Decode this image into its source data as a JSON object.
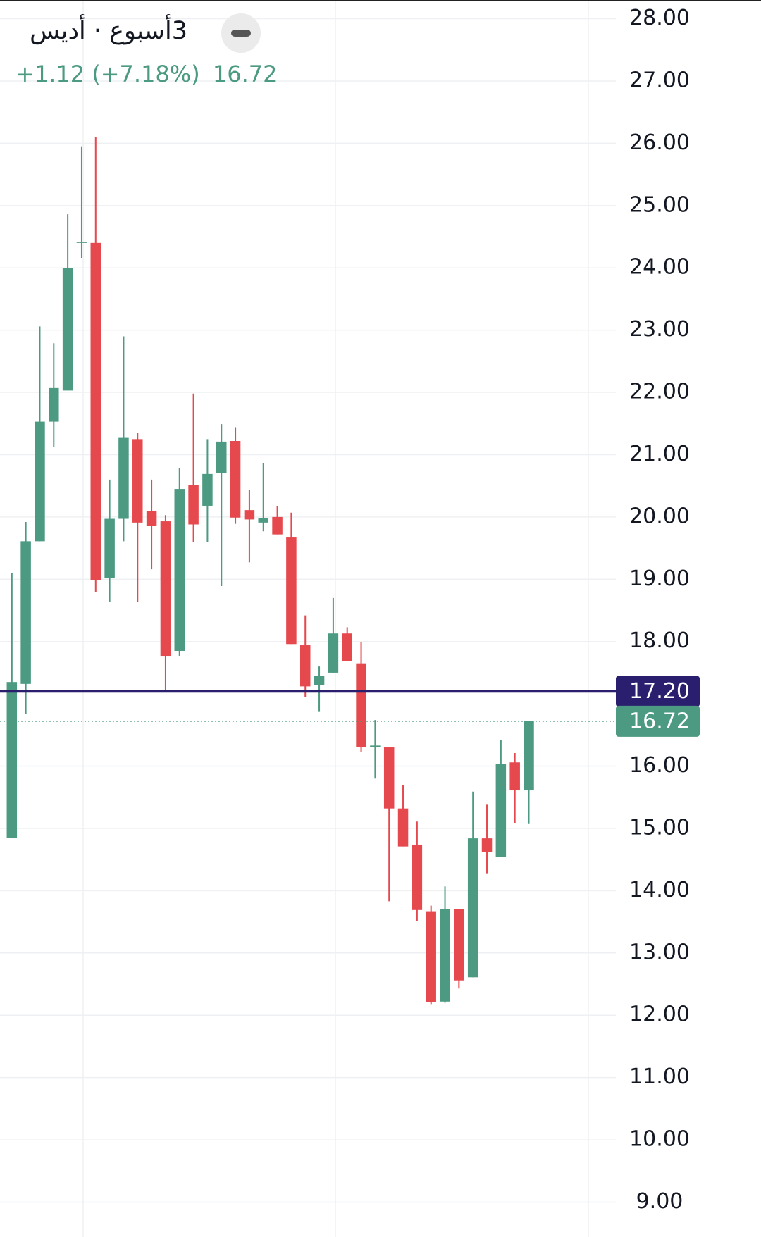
{
  "header": {
    "title": "3أسبوع · أديس",
    "change": "+1.12",
    "change_pct": "(+7.18%)",
    "last": "16.72"
  },
  "chart_data": {
    "type": "candlestick",
    "open": [
      14.85,
      17.32,
      19.61,
      21.53,
      22.03,
      24.4,
      24.4,
      19.02,
      19.97,
      21.25,
      20.1,
      19.93,
      17.85,
      20.51,
      20.18,
      20.7,
      21.22,
      20.11,
      19.91,
      20.0,
      19.67,
      17.94,
      17.3,
      17.5,
      18.13,
      17.65,
      16.31,
      16.3,
      15.32,
      14.74,
      13.67,
      12.22,
      13.71,
      12.61,
      14.84,
      14.54,
      16.06,
      15.61
    ],
    "high": [
      19.1,
      19.92,
      23.06,
      22.79,
      24.86,
      25.95,
      26.1,
      20.6,
      22.9,
      21.35,
      20.6,
      20.03,
      20.78,
      21.98,
      21.25,
      21.49,
      21.44,
      20.43,
      20.87,
      20.17,
      20.07,
      18.42,
      17.6,
      18.7,
      18.23,
      17.99,
      16.74,
      16.3,
      15.69,
      15.11,
      13.76,
      14.07,
      13.71,
      15.59,
      15.38,
      16.42,
      16.21,
      16.72
    ],
    "low": [
      14.85,
      16.84,
      19.61,
      21.13,
      22.03,
      24.16,
      18.8,
      18.63,
      19.61,
      18.64,
      19.16,
      17.21,
      17.77,
      19.6,
      19.6,
      18.89,
      19.89,
      19.27,
      19.77,
      19.72,
      17.96,
      17.11,
      16.87,
      17.5,
      17.69,
      16.23,
      15.8,
      13.83,
      14.71,
      13.51,
      12.18,
      12.2,
      12.43,
      12.61,
      14.28,
      14.54,
      15.09,
      15.07
    ],
    "close": [
      17.35,
      19.61,
      21.53,
      22.07,
      24.0,
      24.42,
      18.99,
      19.97,
      21.27,
      19.91,
      19.86,
      17.77,
      20.45,
      19.88,
      20.69,
      21.21,
      19.99,
      19.96,
      19.98,
      19.72,
      17.96,
      17.28,
      17.45,
      18.13,
      17.69,
      16.31,
      16.33,
      15.32,
      14.71,
      13.69,
      12.21,
      13.71,
      12.56,
      14.84,
      14.62,
      16.04,
      15.61,
      16.72
    ],
    "up_color": "#4c9a82",
    "down_color": "#e5484d",
    "ylim": [
      8.44,
      28.3
    ],
    "yticks": [
      {
        "value": 28,
        "label": "28.00"
      },
      {
        "value": 27,
        "label": "27.00"
      },
      {
        "value": 26,
        "label": "26.00"
      },
      {
        "value": 25,
        "label": "25.00"
      },
      {
        "value": 24,
        "label": "24.00"
      },
      {
        "value": 23,
        "label": "23.00"
      },
      {
        "value": 22,
        "label": "22.00"
      },
      {
        "value": 21,
        "label": "21.00"
      },
      {
        "value": 20,
        "label": "20.00"
      },
      {
        "value": 19,
        "label": "19.00"
      },
      {
        "value": 18,
        "label": "18.00"
      },
      {
        "value": 16,
        "label": "16.00"
      },
      {
        "value": 15,
        "label": "15.00"
      },
      {
        "value": 14,
        "label": "14.00"
      },
      {
        "value": 13,
        "label": "13.00"
      },
      {
        "value": 12,
        "label": "12.00"
      },
      {
        "value": 11,
        "label": "11.00"
      },
      {
        "value": 10,
        "label": "10.00"
      },
      {
        "value": 9,
        "label": "9.00"
      }
    ],
    "grid": true,
    "price_line": {
      "value": 17.2,
      "label": "17.20",
      "color": "#2a1e6e"
    },
    "last_price": {
      "value": 16.72,
      "label": "16.72",
      "color": "#4c9a82"
    }
  }
}
